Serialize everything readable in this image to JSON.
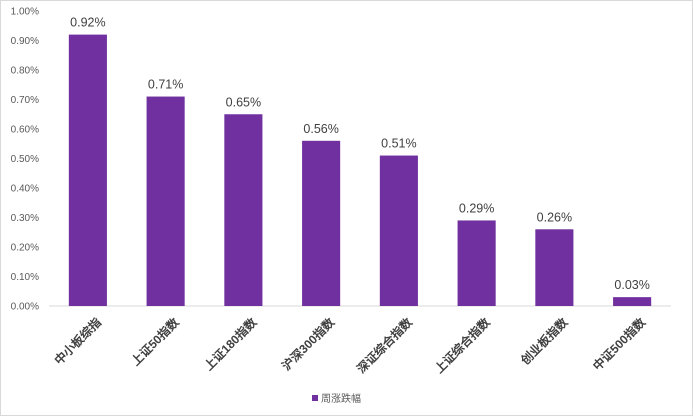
{
  "chart_data": {
    "type": "bar",
    "categories": [
      "中小板综指",
      "上证50指数",
      "上证180指数",
      "沪深300指数",
      "深证综合指数",
      "上证综合指数",
      "创业板指数",
      "中证500指数"
    ],
    "series": [
      {
        "name": "周涨跌幅",
        "values": [
          0.92,
          0.71,
          0.65,
          0.56,
          0.51,
          0.29,
          0.26,
          0.03
        ],
        "labels": [
          "0.92%",
          "0.71%",
          "0.65%",
          "0.56%",
          "0.51%",
          "0.29%",
          "0.26%",
          "0.03%"
        ],
        "color": "#7030a0"
      }
    ],
    "yticks": [
      "0.00%",
      "0.10%",
      "0.20%",
      "0.30%",
      "0.40%",
      "0.50%",
      "0.60%",
      "0.70%",
      "0.80%",
      "0.90%",
      "1.00%"
    ],
    "ylim": [
      0,
      1.0
    ],
    "unit": "%",
    "grid": false,
    "legend": "bottom-center"
  }
}
